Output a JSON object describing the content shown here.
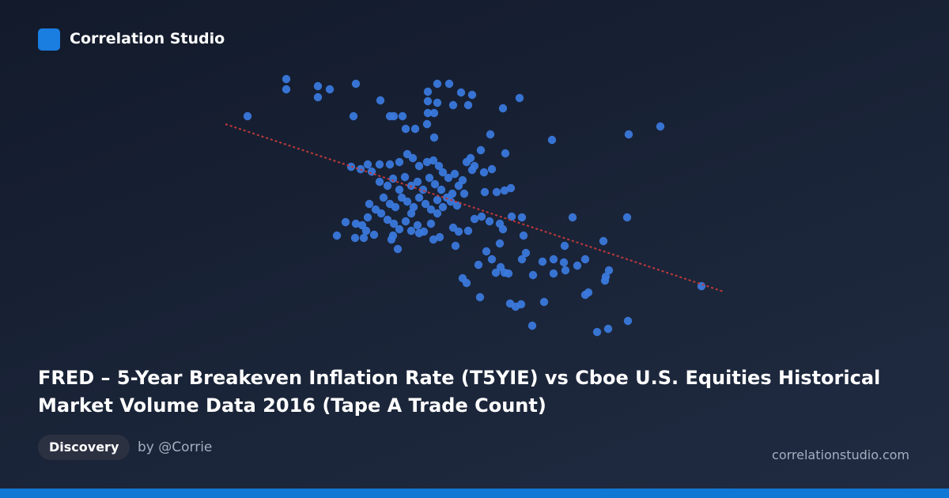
{
  "header": {
    "brand": "Correlation Studio"
  },
  "chart_data": {
    "type": "scatter",
    "title": "FRED – 5-Year Breakeven Inflation Rate (T5YIE) vs Cboe U.S. Equities Historical Market Volume Data 2016 (Tape A Trade Count)",
    "color": "#3b7be0",
    "xlim": [
      0,
      640
    ],
    "ylim": [
      0,
      335
    ],
    "x": [
      33,
      82,
      82,
      122,
      122,
      137,
      170,
      167,
      201,
      213,
      218,
      229,
      233,
      245,
      261,
      261,
      273,
      288,
      273,
      293,
      303,
      312,
      317,
      261,
      269,
      260,
      269,
      356,
      377,
      340,
      418,
      515,
      555,
      164,
      176,
      185,
      190,
      200,
      213,
      225,
      235,
      242,
      250,
      260,
      268,
      275,
      280,
      287,
      295,
      305,
      310,
      315,
      320,
      328,
      332,
      342,
      359,
      317,
      200,
      210,
      217,
      225,
      232,
      240,
      248,
      255,
      263,
      270,
      278,
      285,
      292,
      300,
      205,
      213,
      220,
      228,
      235,
      243,
      250,
      258,
      265,
      273,
      280,
      290,
      298,
      307,
      187,
      195,
      202,
      210,
      218,
      225,
      233,
      240,
      248,
      256,
      265,
      273,
      185,
      178,
      170,
      157,
      183,
      193,
      180,
      169,
      146,
      215,
      223,
      217,
      240,
      250,
      268,
      276,
      296,
      293,
      300,
      312,
      320,
      329,
      333,
      348,
      358,
      366,
      339,
      352,
      356,
      367,
      380,
      382,
      352,
      335,
      342,
      325,
      353,
      358,
      347,
      363,
      305,
      310,
      327,
      365,
      372,
      379,
      393,
      408,
      380,
      385,
      406,
      420,
      433,
      435,
      420,
      394,
      434,
      444,
      460,
      450,
      483,
      486,
      490,
      485,
      464,
      460,
      513,
      475,
      489,
      514,
      607
    ],
    "y": [
      278,
      325,
      312,
      316,
      302,
      312,
      319,
      278,
      298,
      278,
      278,
      278,
      262,
      262,
      309,
      297,
      319,
      319,
      295,
      292,
      308,
      292,
      305,
      282,
      282,
      268,
      251,
      288,
      301,
      255,
      248,
      255,
      265,
      214,
      211,
      217,
      208,
      217,
      217,
      220,
      230,
      225,
      215,
      220,
      222,
      215,
      207,
      200,
      205,
      197,
      220,
      225,
      215,
      235,
      207,
      211,
      231,
      210,
      195,
      190,
      199,
      185,
      201,
      190,
      195,
      185,
      200,
      192,
      185,
      175,
      180,
      190,
      175,
      167,
      163,
      175,
      170,
      163,
      175,
      167,
      160,
      172,
      163,
      170,
      165,
      180,
      167,
      160,
      155,
      147,
      142,
      135,
      145,
      155,
      140,
      132,
      142,
      155,
      150,
      140,
      142,
      144,
      133,
      128,
      124,
      124,
      127,
      122,
      110,
      127,
      133,
      130,
      122,
      125,
      114,
      137,
      132,
      133,
      148,
      151,
      182,
      182,
      184,
      187,
      145,
      142,
      135,
      151,
      150,
      127,
      117,
      107,
      97,
      90,
      87,
      80,
      80,
      79,
      73,
      67,
      49,
      41,
      37,
      40,
      13,
      43,
      97,
      105,
      94,
      97,
      93,
      83,
      79,
      77,
      114,
      150,
      97,
      89,
      120,
      75,
      83,
      70,
      55,
      52,
      150,
      5,
      9,
      19,
      63
    ],
    "trendline": {
      "color": "#c0393b",
      "x": [
        5,
        635
      ],
      "y": [
        268,
        56
      ]
    }
  },
  "footer": {
    "tag": "Discovery",
    "author": "by @Corrie",
    "url": "correlationstudio.com"
  }
}
